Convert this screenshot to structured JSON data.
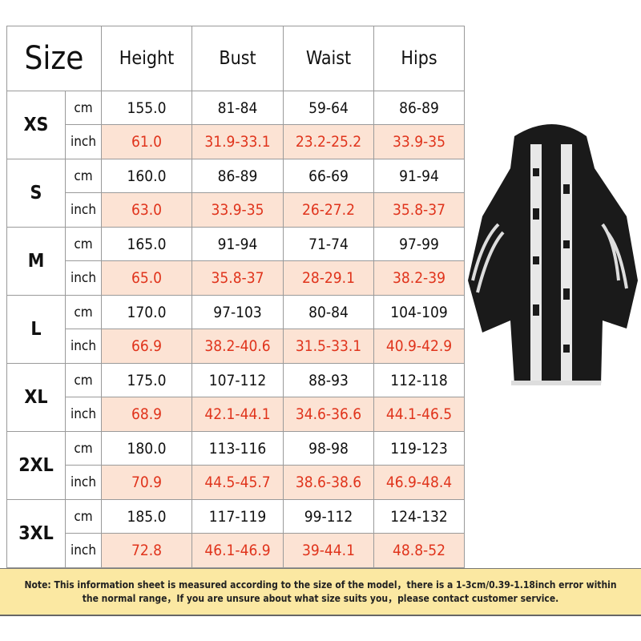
{
  "headers": {
    "size": "Size",
    "columns": [
      "Height",
      "Bust",
      "Waist",
      "Hips"
    ]
  },
  "units": {
    "cm": "cm",
    "inch": "inch"
  },
  "rows": [
    {
      "size": "XS",
      "cm": [
        "155.0",
        "81-84",
        "59-64",
        "86-89"
      ],
      "inch": [
        "61.0",
        "31.9-33.1",
        "23.2-25.2",
        "33.9-35"
      ]
    },
    {
      "size": "S",
      "cm": [
        "160.0",
        "86-89",
        "66-69",
        "91-94"
      ],
      "inch": [
        "63.0",
        "33.9-35",
        "26-27.2",
        "35.8-37"
      ]
    },
    {
      "size": "M",
      "cm": [
        "165.0",
        "91-94",
        "71-74",
        "97-99"
      ],
      "inch": [
        "65.0",
        "35.8-37",
        "28-29.1",
        "38.2-39"
      ]
    },
    {
      "size": "L",
      "cm": [
        "170.0",
        "97-103",
        "80-84",
        "104-109"
      ],
      "inch": [
        "66.9",
        "38.2-40.6",
        "31.5-33.1",
        "40.9-42.9"
      ]
    },
    {
      "size": "XL",
      "cm": [
        "175.0",
        "107-112",
        "88-93",
        "112-118"
      ],
      "inch": [
        "68.9",
        "42.1-44.1",
        "34.6-36.6",
        "44.1-46.5"
      ]
    },
    {
      "size": "2XL",
      "cm": [
        "180.0",
        "113-116",
        "98-98",
        "119-123"
      ],
      "inch": [
        "70.9",
        "44.5-45.7",
        "38.6-38.6",
        "46.9-48.4"
      ]
    },
    {
      "size": "3XL",
      "cm": [
        "185.0",
        "117-119",
        "99-112",
        "124-132"
      ],
      "inch": [
        "72.8",
        "46.1-46.9",
        "39-44.1",
        "48.8-52"
      ]
    }
  ],
  "note": "Note: This information sheet is measured according to the size of the model，there is a 1-3cm/0.39-1.18inch error within the normal range，If you are unsure about what size suits you，please contact customer service.",
  "colors": {
    "inch_bg": "#fce3d4",
    "inch_text": "#e0341c",
    "note_bg": "#fbe8a2"
  }
}
